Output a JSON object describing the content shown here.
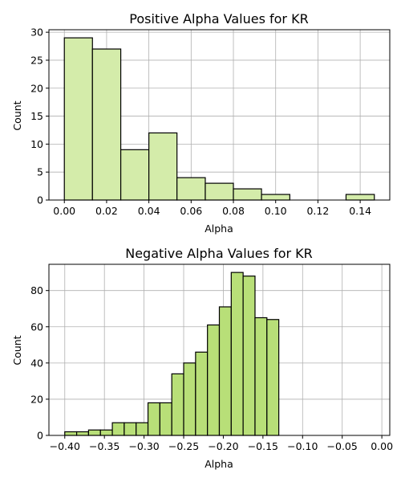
{
  "chart_data": [
    {
      "type": "bar",
      "title": "Positive Alpha Values for KR",
      "xlabel": "Alpha",
      "ylabel": "Count",
      "bins": [
        {
          "start": 0.0,
          "end": 0.0133,
          "count": 29
        },
        {
          "start": 0.0133,
          "end": 0.0267,
          "count": 27
        },
        {
          "start": 0.0267,
          "end": 0.04,
          "count": 9
        },
        {
          "start": 0.04,
          "end": 0.0533,
          "count": 12
        },
        {
          "start": 0.0533,
          "end": 0.0667,
          "count": 4
        },
        {
          "start": 0.0667,
          "end": 0.08,
          "count": 3
        },
        {
          "start": 0.08,
          "end": 0.0933,
          "count": 2
        },
        {
          "start": 0.0933,
          "end": 0.1067,
          "count": 1
        },
        {
          "start": 0.1067,
          "end": 0.12,
          "count": 0
        },
        {
          "start": 0.12,
          "end": 0.1333,
          "count": 0
        },
        {
          "start": 0.1333,
          "end": 0.1467,
          "count": 1
        }
      ],
      "xlim": [
        -0.0073,
        0.154
      ],
      "ylim": [
        0,
        30.45
      ],
      "xticks": [
        0.0,
        0.02,
        0.04,
        0.06,
        0.08,
        0.1,
        0.12,
        0.14
      ],
      "xtick_labels": [
        "0.00",
        "0.02",
        "0.04",
        "0.06",
        "0.08",
        "0.10",
        "0.12",
        "0.14"
      ],
      "yticks": [
        0,
        5,
        10,
        15,
        20,
        25,
        30
      ],
      "ytick_labels": [
        "0",
        "5",
        "10",
        "15",
        "20",
        "25",
        "30"
      ],
      "grid": true,
      "bar_color": "#d4ecaa",
      "edge_color": "#000000",
      "grid_color": "#b0b0b0"
    },
    {
      "type": "bar",
      "title": "Negative Alpha Values for KR",
      "xlabel": "Alpha",
      "ylabel": "Count",
      "bins": [
        {
          "start": -0.4,
          "end": -0.385,
          "count": 2
        },
        {
          "start": -0.385,
          "end": -0.37,
          "count": 2
        },
        {
          "start": -0.37,
          "end": -0.355,
          "count": 3
        },
        {
          "start": -0.355,
          "end": -0.34,
          "count": 3
        },
        {
          "start": -0.34,
          "end": -0.325,
          "count": 7
        },
        {
          "start": -0.325,
          "end": -0.31,
          "count": 7
        },
        {
          "start": -0.31,
          "end": -0.295,
          "count": 7
        },
        {
          "start": -0.295,
          "end": -0.28,
          "count": 18
        },
        {
          "start": -0.28,
          "end": -0.265,
          "count": 18
        },
        {
          "start": -0.265,
          "end": -0.25,
          "count": 34
        },
        {
          "start": -0.25,
          "end": -0.235,
          "count": 40
        },
        {
          "start": -0.235,
          "end": -0.22,
          "count": 46
        },
        {
          "start": -0.22,
          "end": -0.205,
          "count": 61
        },
        {
          "start": -0.205,
          "end": -0.19,
          "count": 71
        },
        {
          "start": -0.19,
          "end": -0.175,
          "count": 90
        },
        {
          "start": -0.175,
          "end": -0.16,
          "count": 88
        },
        {
          "start": -0.16,
          "end": -0.145,
          "count": 65
        },
        {
          "start": -0.145,
          "end": -0.13,
          "count": 64
        }
      ],
      "xlim": [
        -0.42,
        0.01
      ],
      "ylim": [
        0,
        94.5
      ],
      "xticks": [
        -0.4,
        -0.35,
        -0.3,
        -0.25,
        -0.2,
        -0.15,
        -0.1,
        -0.05,
        0.0
      ],
      "xtick_labels": [
        "−0.40",
        "−0.35",
        "−0.30",
        "−0.25",
        "−0.20",
        "−0.15",
        "−0.10",
        "−0.05",
        "0.00"
      ],
      "yticks": [
        0,
        20,
        40,
        60,
        80
      ],
      "ytick_labels": [
        "0",
        "20",
        "40",
        "60",
        "80"
      ],
      "grid": true,
      "bar_color": "#b8df78",
      "edge_color": "#000000",
      "grid_color": "#b0b0b0"
    }
  ]
}
